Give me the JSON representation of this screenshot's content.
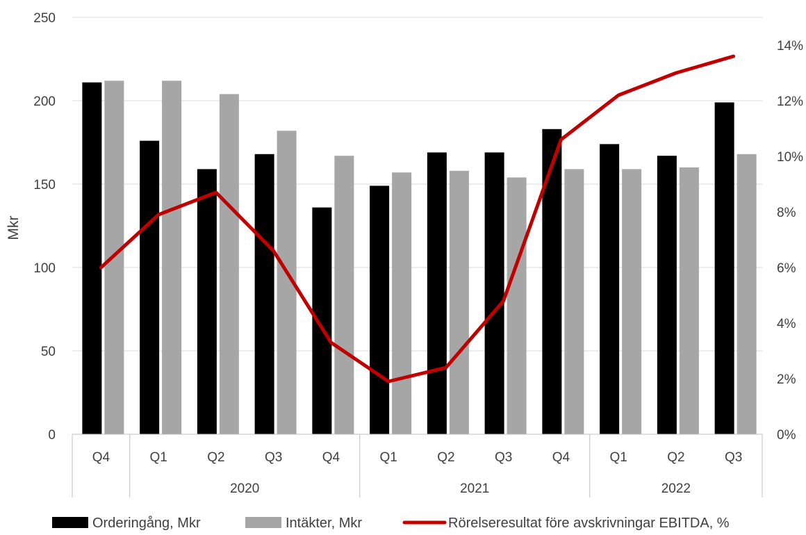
{
  "chart_data": {
    "type": "bar",
    "ylabel": "Mkr",
    "ylim": [
      0,
      250
    ],
    "y2lim": [
      0,
      0.15
    ],
    "y_ticks": [
      0,
      50,
      100,
      150,
      200,
      250
    ],
    "y2_ticks": [
      "0%",
      "2%",
      "4%",
      "6%",
      "8%",
      "10%",
      "12%",
      "14%"
    ],
    "grid": "horizontal",
    "legend_position": "bottom",
    "categories": [
      "Q4",
      "Q1",
      "Q2",
      "Q3",
      "Q4",
      "Q1",
      "Q2",
      "Q3",
      "Q4",
      "Q1",
      "Q2",
      "Q3"
    ],
    "year_groups": [
      {
        "label": "",
        "count": 1
      },
      {
        "label": "2020",
        "count": 4
      },
      {
        "label": "2021",
        "count": 4
      },
      {
        "label": "2022",
        "count": 3
      }
    ],
    "series": [
      {
        "name": "Orderingång, Mkr",
        "type": "bar",
        "axis": "left",
        "color": "#000000",
        "values": [
          211,
          176,
          159,
          168,
          136,
          149,
          169,
          169,
          183,
          174,
          167,
          199
        ]
      },
      {
        "name": "Intäkter, Mkr",
        "type": "bar",
        "axis": "left",
        "color": "#a6a6a6",
        "values": [
          212,
          212,
          204,
          182,
          167,
          157,
          158,
          154,
          159,
          159,
          160,
          168
        ]
      },
      {
        "name": "Rörelseresultat före avskrivningar EBITDA, %",
        "type": "line",
        "axis": "right",
        "color": "#c00000",
        "values": [
          0.06,
          0.079,
          0.087,
          0.066,
          0.033,
          0.019,
          0.024,
          0.048,
          0.106,
          0.122,
          0.13,
          0.136
        ]
      }
    ]
  }
}
